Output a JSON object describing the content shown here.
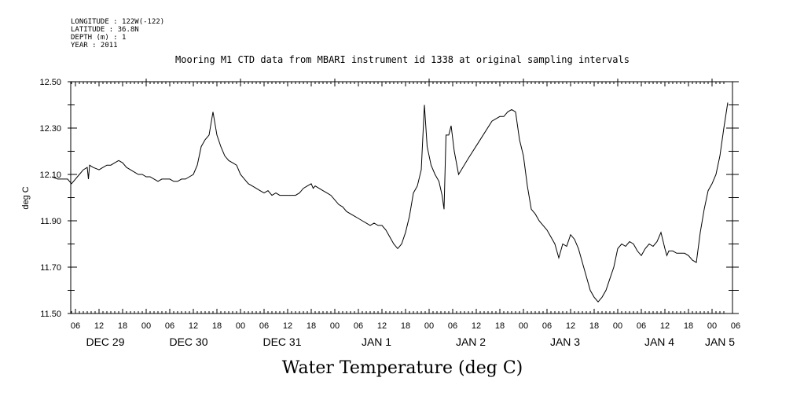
{
  "meta": {
    "longitude": "LONGITUDE : 122W(-122)",
    "latitude": "LATITUDE : 36.8N",
    "depth": "DEPTH (m) : 1",
    "year": "YEAR : 2011"
  },
  "chart_data": {
    "type": "line",
    "title": "Mooring M1 CTD data from MBARI instrument id 1338 at original sampling intervals",
    "xlabel": "Water Temperature (deg C)",
    "ylabel": "deg C",
    "ylim": [
      11.5,
      12.5
    ],
    "xlim": [
      0,
      171
    ],
    "y_ticks": [
      "11.50",
      "11.70",
      "11.90",
      "12.10",
      "12.30",
      "12.50"
    ],
    "hour_ticks": [
      "06",
      "12",
      "18",
      "00",
      "06",
      "12",
      "18",
      "00",
      "06",
      "12",
      "18",
      "00",
      "06",
      "12",
      "18",
      "00",
      "06",
      "12",
      "18",
      "00",
      "06",
      "12",
      "18",
      "00",
      "06",
      "12",
      "18",
      "00",
      "06"
    ],
    "day_labels": [
      "DEC 29",
      "DEC 30",
      "DEC 31",
      "JAN  1",
      "JAN  2",
      "JAN  3",
      "JAN  4",
      "JAN  5"
    ],
    "x_unit": "hours since DEC 29 00:00",
    "series": [
      {
        "values": [
          [
            0.0,
            12.09
          ],
          [
            1.5,
            12.08
          ],
          [
            3,
            12.08
          ],
          [
            4,
            12.08
          ],
          [
            5,
            12.06
          ],
          [
            6,
            12.08
          ],
          [
            7,
            12.1
          ],
          [
            8,
            12.12
          ],
          [
            9,
            12.13
          ],
          [
            9.3,
            12.08
          ],
          [
            9.6,
            12.14
          ],
          [
            10.5,
            12.13
          ],
          [
            12,
            12.12
          ],
          [
            13,
            12.13
          ],
          [
            14,
            12.14
          ],
          [
            15,
            12.14
          ],
          [
            16,
            12.15
          ],
          [
            17,
            12.16
          ],
          [
            18,
            12.15
          ],
          [
            19,
            12.13
          ],
          [
            20,
            12.12
          ],
          [
            21,
            12.11
          ],
          [
            22,
            12.1
          ],
          [
            23,
            12.1
          ],
          [
            24,
            12.09
          ],
          [
            25,
            12.09
          ],
          [
            26,
            12.08
          ],
          [
            27,
            12.07
          ],
          [
            28,
            12.08
          ],
          [
            29,
            12.08
          ],
          [
            30,
            12.08
          ],
          [
            31,
            12.07
          ],
          [
            32,
            12.07
          ],
          [
            33,
            12.08
          ],
          [
            34,
            12.08
          ],
          [
            35,
            12.09
          ],
          [
            36,
            12.1
          ],
          [
            37,
            12.14
          ],
          [
            38,
            12.22
          ],
          [
            39,
            12.25
          ],
          [
            40,
            12.27
          ],
          [
            41,
            12.37
          ],
          [
            42,
            12.27
          ],
          [
            43,
            12.22
          ],
          [
            44,
            12.18
          ],
          [
            45,
            12.16
          ],
          [
            46,
            12.15
          ],
          [
            47,
            12.14
          ],
          [
            48,
            12.1
          ],
          [
            49,
            12.08
          ],
          [
            50,
            12.06
          ],
          [
            51,
            12.05
          ],
          [
            52,
            12.04
          ],
          [
            53,
            12.03
          ],
          [
            54,
            12.02
          ],
          [
            55,
            12.03
          ],
          [
            56,
            12.01
          ],
          [
            57,
            12.02
          ],
          [
            58,
            12.01
          ],
          [
            59,
            12.01
          ],
          [
            60,
            12.01
          ],
          [
            61,
            12.01
          ],
          [
            62,
            12.01
          ],
          [
            63,
            12.02
          ],
          [
            64,
            12.04
          ],
          [
            65,
            12.05
          ],
          [
            66,
            12.06
          ],
          [
            66.5,
            12.04
          ],
          [
            67,
            12.05
          ],
          [
            68,
            12.04
          ],
          [
            69,
            12.03
          ],
          [
            70,
            12.02
          ],
          [
            71,
            12.01
          ],
          [
            72,
            11.99
          ],
          [
            73,
            11.97
          ],
          [
            74,
            11.96
          ],
          [
            75,
            11.94
          ],
          [
            76,
            11.93
          ],
          [
            77,
            11.92
          ],
          [
            78,
            11.91
          ],
          [
            79,
            11.9
          ],
          [
            80,
            11.89
          ],
          [
            81,
            11.88
          ],
          [
            82,
            11.89
          ],
          [
            83,
            11.88
          ],
          [
            84,
            11.88
          ],
          [
            85,
            11.86
          ],
          [
            86,
            11.83
          ],
          [
            87,
            11.8
          ],
          [
            88,
            11.78
          ],
          [
            89,
            11.8
          ],
          [
            90,
            11.85
          ],
          [
            91,
            11.92
          ],
          [
            92,
            12.02
          ],
          [
            93,
            12.05
          ],
          [
            94,
            12.12
          ],
          [
            94.8,
            12.4
          ],
          [
            95.5,
            12.22
          ],
          [
            96.5,
            12.14
          ],
          [
            97.5,
            12.1
          ],
          [
            98.5,
            12.07
          ],
          [
            99.3,
            12.01
          ],
          [
            99.8,
            11.95
          ],
          [
            100.3,
            12.27
          ],
          [
            101,
            12.27
          ],
          [
            101.6,
            12.31
          ],
          [
            102.4,
            12.2
          ],
          [
            103.5,
            12.1
          ],
          [
            106,
            12.17
          ],
          [
            109,
            12.25
          ],
          [
            112,
            12.33
          ],
          [
            114,
            12.35
          ],
          [
            115,
            12.35
          ],
          [
            116,
            12.37
          ],
          [
            117,
            12.38
          ],
          [
            118,
            12.37
          ],
          [
            119,
            12.25
          ],
          [
            120,
            12.18
          ],
          [
            121,
            12.05
          ],
          [
            122,
            11.95
          ],
          [
            123,
            11.93
          ],
          [
            124,
            11.9
          ],
          [
            125,
            11.88
          ],
          [
            126,
            11.86
          ],
          [
            127,
            11.83
          ],
          [
            128,
            11.8
          ],
          [
            129,
            11.74
          ],
          [
            130,
            11.8
          ],
          [
            131,
            11.79
          ],
          [
            132,
            11.84
          ],
          [
            133,
            11.82
          ],
          [
            134,
            11.78
          ],
          [
            135,
            11.72
          ],
          [
            136,
            11.66
          ],
          [
            137,
            11.6
          ],
          [
            138,
            11.57
          ],
          [
            139,
            11.55
          ],
          [
            140,
            11.57
          ],
          [
            141,
            11.6
          ],
          [
            142,
            11.65
          ],
          [
            143,
            11.7
          ],
          [
            144,
            11.78
          ],
          [
            145,
            11.8
          ],
          [
            146,
            11.79
          ],
          [
            147,
            11.81
          ],
          [
            148,
            11.8
          ],
          [
            149,
            11.77
          ],
          [
            150,
            11.75
          ],
          [
            151,
            11.78
          ],
          [
            152,
            11.8
          ],
          [
            153,
            11.79
          ],
          [
            154,
            11.81
          ],
          [
            155,
            11.85
          ],
          [
            156,
            11.78
          ],
          [
            156.5,
            11.75
          ],
          [
            157,
            11.77
          ],
          [
            158,
            11.77
          ],
          [
            159,
            11.76
          ],
          [
            160,
            11.76
          ],
          [
            161,
            11.76
          ],
          [
            162,
            11.75
          ],
          [
            163,
            11.73
          ],
          [
            164,
            11.72
          ],
          [
            165,
            11.85
          ],
          [
            166,
            11.95
          ],
          [
            167,
            12.03
          ],
          [
            168,
            12.06
          ],
          [
            169,
            12.1
          ],
          [
            170,
            12.18
          ],
          [
            171,
            12.3
          ],
          [
            172,
            12.41
          ]
        ]
      }
    ]
  }
}
